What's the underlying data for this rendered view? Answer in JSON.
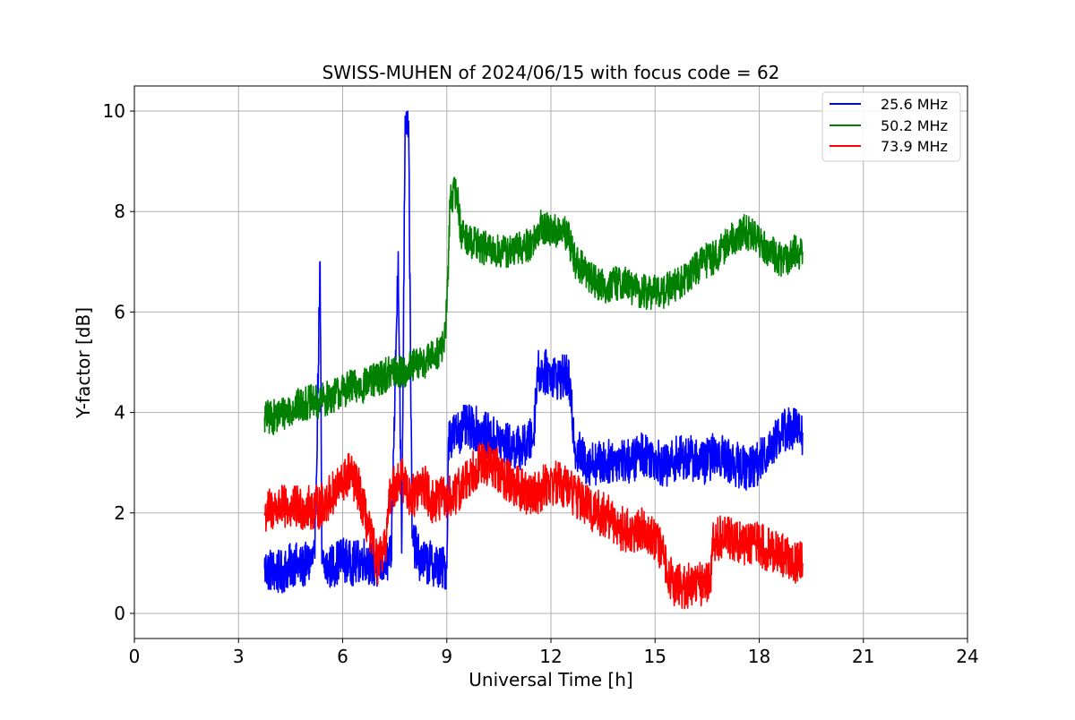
{
  "chart_data": {
    "type": "line",
    "title": "SWISS-MUHEN of 2024/06/15 with focus code = 62",
    "xlabel": "Universal Time [h]",
    "ylabel": "Y-factor [dB]",
    "xlim": [
      0,
      24
    ],
    "ylim": [
      -0.5,
      10.5
    ],
    "xticks": [
      0,
      3,
      6,
      9,
      12,
      15,
      18,
      21,
      24
    ],
    "yticks": [
      0,
      2,
      4,
      6,
      8,
      10
    ],
    "grid": true,
    "legend_position": "top-right",
    "series": [
      {
        "name": "25.6 MHz",
        "color": "#0000ff",
        "points": [
          [
            3.75,
            0.9
          ],
          [
            4.0,
            0.85
          ],
          [
            4.2,
            0.8
          ],
          [
            4.4,
            0.9
          ],
          [
            4.6,
            1.0
          ],
          [
            4.8,
            0.9
          ],
          [
            5.0,
            1.0
          ],
          [
            5.2,
            1.1
          ],
          [
            5.35,
            7.0
          ],
          [
            5.4,
            1.0
          ],
          [
            5.6,
            0.9
          ],
          [
            5.8,
            1.0
          ],
          [
            6.0,
            1.1
          ],
          [
            6.2,
            1.0
          ],
          [
            6.4,
            1.0
          ],
          [
            6.6,
            1.1
          ],
          [
            6.8,
            1.0
          ],
          [
            7.0,
            0.9
          ],
          [
            7.2,
            1.0
          ],
          [
            7.4,
            1.1
          ],
          [
            7.6,
            7.2
          ],
          [
            7.7,
            1.2
          ],
          [
            7.8,
            9.9
          ],
          [
            7.9,
            9.8
          ],
          [
            8.0,
            1.5
          ],
          [
            8.2,
            1.1
          ],
          [
            8.4,
            1.0
          ],
          [
            8.6,
            1.0
          ],
          [
            8.8,
            0.9
          ],
          [
            9.0,
            0.9
          ],
          [
            9.05,
            3.5
          ],
          [
            9.3,
            3.6
          ],
          [
            9.5,
            3.7
          ],
          [
            9.8,
            3.7
          ],
          [
            10.0,
            3.6
          ],
          [
            10.3,
            3.5
          ],
          [
            10.6,
            3.4
          ],
          [
            10.9,
            3.3
          ],
          [
            11.2,
            3.3
          ],
          [
            11.5,
            3.5
          ],
          [
            11.6,
            4.8
          ],
          [
            11.9,
            4.8
          ],
          [
            12.2,
            4.7
          ],
          [
            12.5,
            4.7
          ],
          [
            12.7,
            3.3
          ],
          [
            13.0,
            3.0
          ],
          [
            13.3,
            3.0
          ],
          [
            13.6,
            3.0
          ],
          [
            14.0,
            3.1
          ],
          [
            14.3,
            3.0
          ],
          [
            14.6,
            3.2
          ],
          [
            15.0,
            3.1
          ],
          [
            15.3,
            2.9
          ],
          [
            15.6,
            3.1
          ],
          [
            16.0,
            3.1
          ],
          [
            16.4,
            3.0
          ],
          [
            16.8,
            3.2
          ],
          [
            17.2,
            3.0
          ],
          [
            17.6,
            2.9
          ],
          [
            18.0,
            3.0
          ],
          [
            18.3,
            3.3
          ],
          [
            18.6,
            3.6
          ],
          [
            18.9,
            3.7
          ],
          [
            19.25,
            3.6
          ]
        ]
      },
      {
        "name": "50.2 MHz",
        "color": "#008000",
        "points": [
          [
            3.75,
            3.9
          ],
          [
            4.0,
            3.9
          ],
          [
            4.3,
            4.0
          ],
          [
            4.6,
            4.1
          ],
          [
            5.0,
            4.2
          ],
          [
            5.3,
            4.2
          ],
          [
            5.6,
            4.3
          ],
          [
            5.9,
            4.4
          ],
          [
            6.2,
            4.5
          ],
          [
            6.5,
            4.5
          ],
          [
            6.8,
            4.6
          ],
          [
            7.1,
            4.7
          ],
          [
            7.4,
            4.8
          ],
          [
            7.7,
            4.8
          ],
          [
            8.0,
            4.9
          ],
          [
            8.3,
            5.0
          ],
          [
            8.6,
            5.1
          ],
          [
            8.9,
            5.3
          ],
          [
            9.0,
            6.0
          ],
          [
            9.1,
            8.3
          ],
          [
            9.3,
            8.4
          ],
          [
            9.4,
            7.6
          ],
          [
            9.7,
            7.4
          ],
          [
            10.0,
            7.3
          ],
          [
            10.3,
            7.2
          ],
          [
            10.6,
            7.2
          ],
          [
            10.9,
            7.2
          ],
          [
            11.2,
            7.3
          ],
          [
            11.5,
            7.4
          ],
          [
            11.7,
            7.7
          ],
          [
            12.0,
            7.6
          ],
          [
            12.3,
            7.6
          ],
          [
            12.5,
            7.5
          ],
          [
            12.7,
            7.0
          ],
          [
            13.0,
            6.8
          ],
          [
            13.3,
            6.6
          ],
          [
            13.6,
            6.5
          ],
          [
            14.0,
            6.6
          ],
          [
            14.3,
            6.5
          ],
          [
            14.6,
            6.4
          ],
          [
            14.9,
            6.4
          ],
          [
            15.2,
            6.4
          ],
          [
            15.5,
            6.5
          ],
          [
            15.8,
            6.6
          ],
          [
            16.1,
            6.8
          ],
          [
            16.4,
            7.0
          ],
          [
            16.7,
            7.1
          ],
          [
            17.0,
            7.3
          ],
          [
            17.3,
            7.5
          ],
          [
            17.6,
            7.6
          ],
          [
            17.9,
            7.5
          ],
          [
            18.2,
            7.3
          ],
          [
            18.5,
            7.1
          ],
          [
            18.8,
            7.0
          ],
          [
            19.0,
            7.2
          ],
          [
            19.25,
            7.2
          ]
        ]
      },
      {
        "name": "73.9 MHz",
        "color": "#ff0000",
        "points": [
          [
            3.75,
            2.0
          ],
          [
            4.0,
            2.1
          ],
          [
            4.3,
            2.1
          ],
          [
            4.6,
            2.1
          ],
          [
            5.0,
            2.1
          ],
          [
            5.3,
            2.1
          ],
          [
            5.6,
            2.3
          ],
          [
            5.9,
            2.5
          ],
          [
            6.2,
            2.8
          ],
          [
            6.5,
            2.4
          ],
          [
            6.8,
            1.5
          ],
          [
            7.0,
            1.0
          ],
          [
            7.2,
            1.2
          ],
          [
            7.4,
            2.5
          ],
          [
            7.7,
            2.7
          ],
          [
            8.0,
            2.3
          ],
          [
            8.3,
            2.6
          ],
          [
            8.6,
            2.2
          ],
          [
            8.9,
            2.3
          ],
          [
            9.2,
            2.3
          ],
          [
            9.5,
            2.6
          ],
          [
            9.8,
            2.9
          ],
          [
            10.1,
            3.0
          ],
          [
            10.4,
            2.9
          ],
          [
            10.7,
            2.7
          ],
          [
            11.0,
            2.5
          ],
          [
            11.3,
            2.4
          ],
          [
            11.6,
            2.4
          ],
          [
            11.9,
            2.6
          ],
          [
            12.2,
            2.6
          ],
          [
            12.5,
            2.5
          ],
          [
            12.8,
            2.3
          ],
          [
            13.1,
            2.1
          ],
          [
            13.4,
            2.0
          ],
          [
            13.7,
            1.9
          ],
          [
            14.0,
            1.7
          ],
          [
            14.3,
            1.6
          ],
          [
            14.6,
            1.7
          ],
          [
            14.9,
            1.6
          ],
          [
            15.2,
            1.2
          ],
          [
            15.5,
            0.6
          ],
          [
            15.8,
            0.5
          ],
          [
            16.1,
            0.6
          ],
          [
            16.4,
            0.6
          ],
          [
            16.6,
            0.7
          ],
          [
            16.65,
            1.5
          ],
          [
            17.0,
            1.5
          ],
          [
            17.3,
            1.5
          ],
          [
            17.6,
            1.4
          ],
          [
            17.9,
            1.4
          ],
          [
            18.2,
            1.3
          ],
          [
            18.5,
            1.2
          ],
          [
            18.8,
            1.1
          ],
          [
            19.0,
            1.0
          ],
          [
            19.25,
            1.0
          ]
        ]
      }
    ]
  }
}
